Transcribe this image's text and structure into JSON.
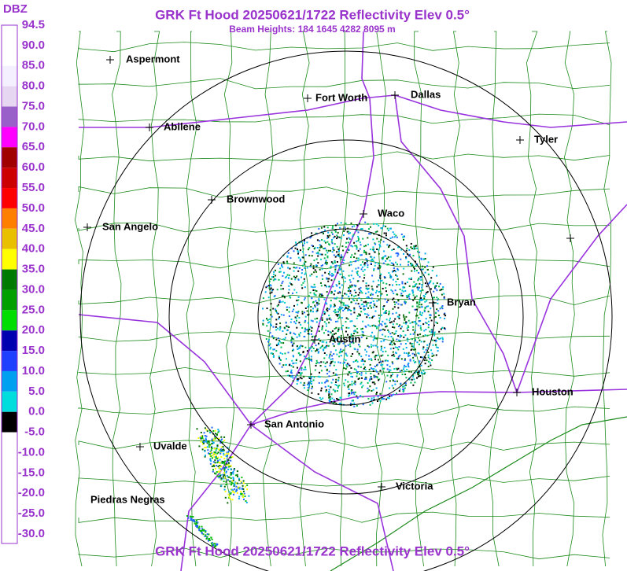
{
  "header": {
    "title": "GRK Ft Hood 20250621/1722 Reflectivity Elev 0.5°",
    "subtitle": "Beam Heights: 184 1645 4282 8095 m"
  },
  "footer": {
    "title": "GRK Ft Hood 20250621/1722 Reflectivity Elev 0.5°"
  },
  "legend": {
    "unit": "DBZ",
    "labels": [
      "94.5",
      "90.0",
      "85.0",
      "80.0",
      "75.0",
      "70.0",
      "65.0",
      "60.0",
      "55.0",
      "50.0",
      "45.0",
      "40.0",
      "35.0",
      "30.0",
      "25.0",
      "20.0",
      "15.0",
      "10.0",
      "5.0",
      "0.0",
      "-5.0",
      "-10.0",
      "-15.0",
      "-20.0",
      "-25.0",
      "-30.0"
    ]
  },
  "cities": [
    {
      "label": "Aspermont"
    },
    {
      "label": "Abilene"
    },
    {
      "label": "Fort Worth"
    },
    {
      "label": "Dallas"
    },
    {
      "label": "Tyler"
    },
    {
      "label": "Brownwood"
    },
    {
      "label": "San Angelo"
    },
    {
      "label": "Waco"
    },
    {
      "label": "Bryan"
    },
    {
      "label": "Austin"
    },
    {
      "label": "Houston"
    },
    {
      "label": "San Antonio"
    },
    {
      "label": "Uvalde"
    },
    {
      "label": "Victoria"
    },
    {
      "label": "Piedras Negras"
    }
  ]
}
